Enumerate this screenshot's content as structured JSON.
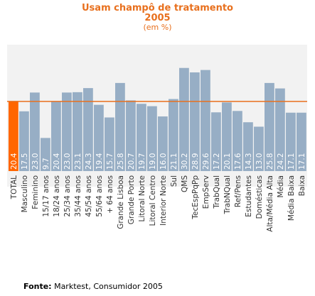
{
  "header": {
    "title": "Usam champô de tratamento",
    "year": "2005",
    "unit": "(em %)"
  },
  "source": {
    "label": "Fonte:",
    "text": "Marktest, Consumidor 2005"
  },
  "colors": {
    "bar": "#97aec5",
    "highlight_bar": "#ff6600",
    "reference_line": "#e8701e",
    "plot_background": "#f2f2f2",
    "title": "#e8701e"
  },
  "chart_data": {
    "type": "bar",
    "title": "Usam champô de tratamento",
    "subtitle": "2005",
    "ylabel": "",
    "xlabel": "",
    "ylim": [
      0,
      37
    ],
    "grid": false,
    "reference_line": 20.4,
    "highlight": "TOTAL",
    "categories": [
      "TOTAL",
      "Masculino",
      "Feminino",
      "15/17 anos",
      "18/24 anos",
      "25/34 anos",
      "35/44 anos",
      "45/54 anos",
      "55/64 anos",
      "+ 64 anos",
      "Grande Lisboa",
      "Grande Porto",
      "Litoral Norte",
      "Litoral Centro",
      "Interior Norte",
      "Sul",
      "QMS",
      "TecEspPqPp",
      "EmpServ",
      "TrabQual",
      "TrabNQual",
      "Ref/Pens",
      "Estudantes",
      "Domésticas",
      "Alta/Média Alta",
      "Média",
      "Média Baixa",
      "Baixa"
    ],
    "values": [
      "20.4",
      "17.5",
      "23.0",
      "9.7",
      "20.4",
      "23.0",
      "23.1",
      "24.3",
      "19.4",
      "15.7",
      "25.8",
      "20.7",
      "19.7",
      "19.0",
      "16.0",
      "21.1",
      "30.2",
      "28.9",
      "29.6",
      "17.2",
      "20.1",
      "17.6",
      "14.3",
      "13.0",
      "25.8",
      "24.2",
      "17.1",
      "17.1"
    ]
  }
}
